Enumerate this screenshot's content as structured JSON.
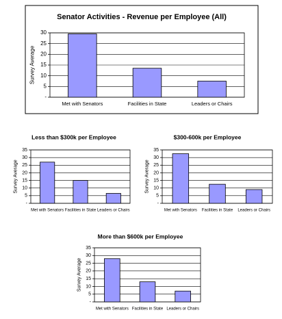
{
  "chart_data": [
    {
      "type": "bar",
      "title": "Senator Activities - Revenue per Employee (All)",
      "ylabel": "Survey Average",
      "categories": [
        "Met with Senators",
        "Facilities in State",
        "Leaders or Chairs"
      ],
      "values": [
        29.5,
        13.5,
        7.5
      ],
      "color": "#9999ff",
      "ylim": [
        0,
        30
      ],
      "yticks": [
        {
          "value": 0,
          "label": "-"
        },
        5,
        10,
        15,
        20,
        25,
        30
      ],
      "grid": true
    },
    {
      "type": "bar",
      "title": "Less than $300k per Employee",
      "ylabel": "Survey Average",
      "categories": [
        "Met with Senators",
        "Facilities in State",
        "Leaders or Chairs"
      ],
      "values": [
        27,
        15,
        6.5
      ],
      "color": "#9999ff",
      "ylim": [
        0,
        35
      ],
      "yticks": [
        {
          "value": 0,
          "label": "-"
        },
        5,
        10,
        15,
        20,
        25,
        30,
        35
      ],
      "grid": true
    },
    {
      "type": "bar",
      "title": "$300-600k per Employee",
      "ylabel": "Survey Average",
      "categories": [
        "Met with Senators",
        "Facilities in State",
        "Leaders or Chairs"
      ],
      "values": [
        32.5,
        12.5,
        9
      ],
      "color": "#9999ff",
      "ylim": [
        0,
        35
      ],
      "yticks": [
        {
          "value": 0,
          "label": "-"
        },
        5,
        10,
        15,
        20,
        25,
        30,
        35
      ],
      "grid": true
    },
    {
      "type": "bar",
      "title": "More than $600k per Employee",
      "ylabel": "Survey Average",
      "categories": [
        "Met with Senators",
        "Facilities in State",
        "Leaders or Chairs"
      ],
      "values": [
        28,
        13,
        7
      ],
      "color": "#9999ff",
      "ylim": [
        0,
        35
      ],
      "yticks": [
        {
          "value": 0,
          "label": "-"
        },
        5,
        10,
        15,
        20,
        25,
        30,
        35
      ],
      "grid": true
    }
  ]
}
